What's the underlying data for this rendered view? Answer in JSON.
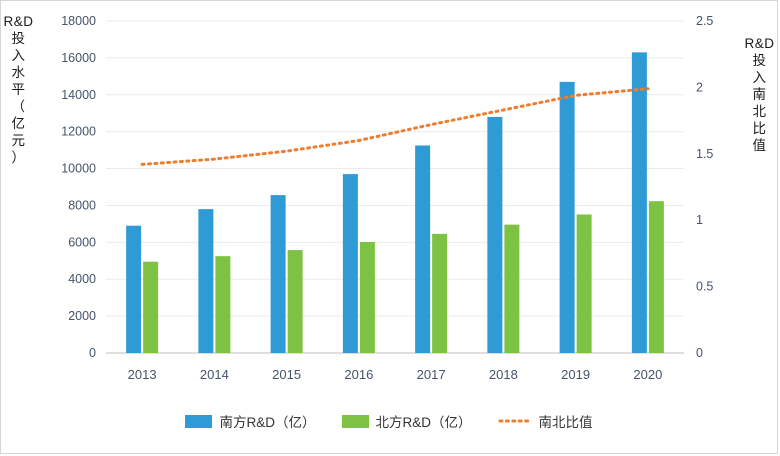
{
  "chart_data": {
    "type": "bar",
    "subtype": "grouped-bars-with-line",
    "categories": [
      "2013",
      "2014",
      "2015",
      "2016",
      "2017",
      "2018",
      "2019",
      "2020"
    ],
    "series": [
      {
        "name": "南方R&D（亿）",
        "kind": "bar",
        "axis": "left",
        "color": "#2e9bd6",
        "values": [
          6900,
          7800,
          8560,
          9700,
          11250,
          12800,
          14700,
          16300
        ]
      },
      {
        "name": "北方R&D（亿）",
        "kind": "bar",
        "axis": "left",
        "color": "#7dc242",
        "values": [
          4950,
          5250,
          5580,
          6020,
          6460,
          6960,
          7510,
          8230
        ]
      },
      {
        "name": "南北比值",
        "kind": "line",
        "style": "dotted",
        "axis": "right",
        "color": "#ed7d31",
        "values": [
          1.42,
          1.46,
          1.52,
          1.6,
          1.72,
          1.83,
          1.94,
          1.99
        ]
      }
    ],
    "left_axis": {
      "title": "R&D投入水平（亿元）",
      "min": 0,
      "max": 18000,
      "step": 2000
    },
    "right_axis": {
      "title": "R&D投入南北比值",
      "min": 0,
      "max": 2.5,
      "step": 0.5
    },
    "grid": true,
    "legend_position": "bottom"
  },
  "colors": {
    "tick_text": "#44546a",
    "grid_line": "#ebebeb",
    "axis_line": "#bfbfbf",
    "frame_border": "#d6d6d6"
  }
}
